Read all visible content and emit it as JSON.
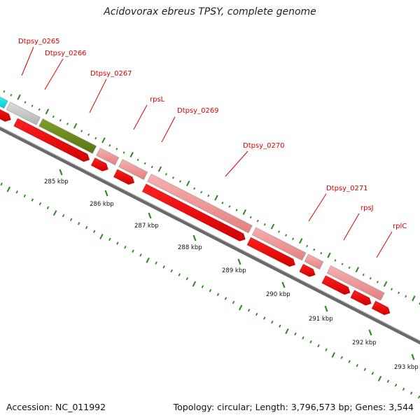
{
  "title": "Acidovorax ebreus TPSY, complete genome",
  "footer": {
    "accession_text": "Accession: NC_011992",
    "summary_text": "Topology: circular; Length: 3,796,573 bp; Genes: 3,544"
  },
  "colors": {
    "label_red": "#dd0000",
    "tick_green": "#2a8a1e",
    "backbone_gray": "#777777",
    "cds_red": "#ee0000",
    "feature_pink": "#f09494",
    "feature_gray": "#c8c8c8",
    "feature_cyan": "#00e8f0",
    "feature_olive": "#6f8c1c",
    "feature_dark": "#666666"
  },
  "genes": [
    {
      "label": "Dtpsy_0265"
    },
    {
      "label": "Dtpsy_0266"
    },
    {
      "label": "Dtpsy_0267"
    },
    {
      "label": "rpsL"
    },
    {
      "label": "Dtpsy_0269"
    },
    {
      "label": "Dtpsy_0270"
    },
    {
      "label": "Dtpsy_0271"
    },
    {
      "label": "rpsJ"
    },
    {
      "label": "rplC"
    }
  ],
  "kbp_ticks": [
    {
      "label": "285 kbp"
    },
    {
      "label": "286 kbp"
    },
    {
      "label": "287 kbp"
    },
    {
      "label": "288 kbp"
    },
    {
      "label": "289 kbp"
    },
    {
      "label": "290 kbp"
    },
    {
      "label": "291 kbp"
    },
    {
      "label": "292 kbp"
    },
    {
      "label": "293 kbp"
    }
  ]
}
